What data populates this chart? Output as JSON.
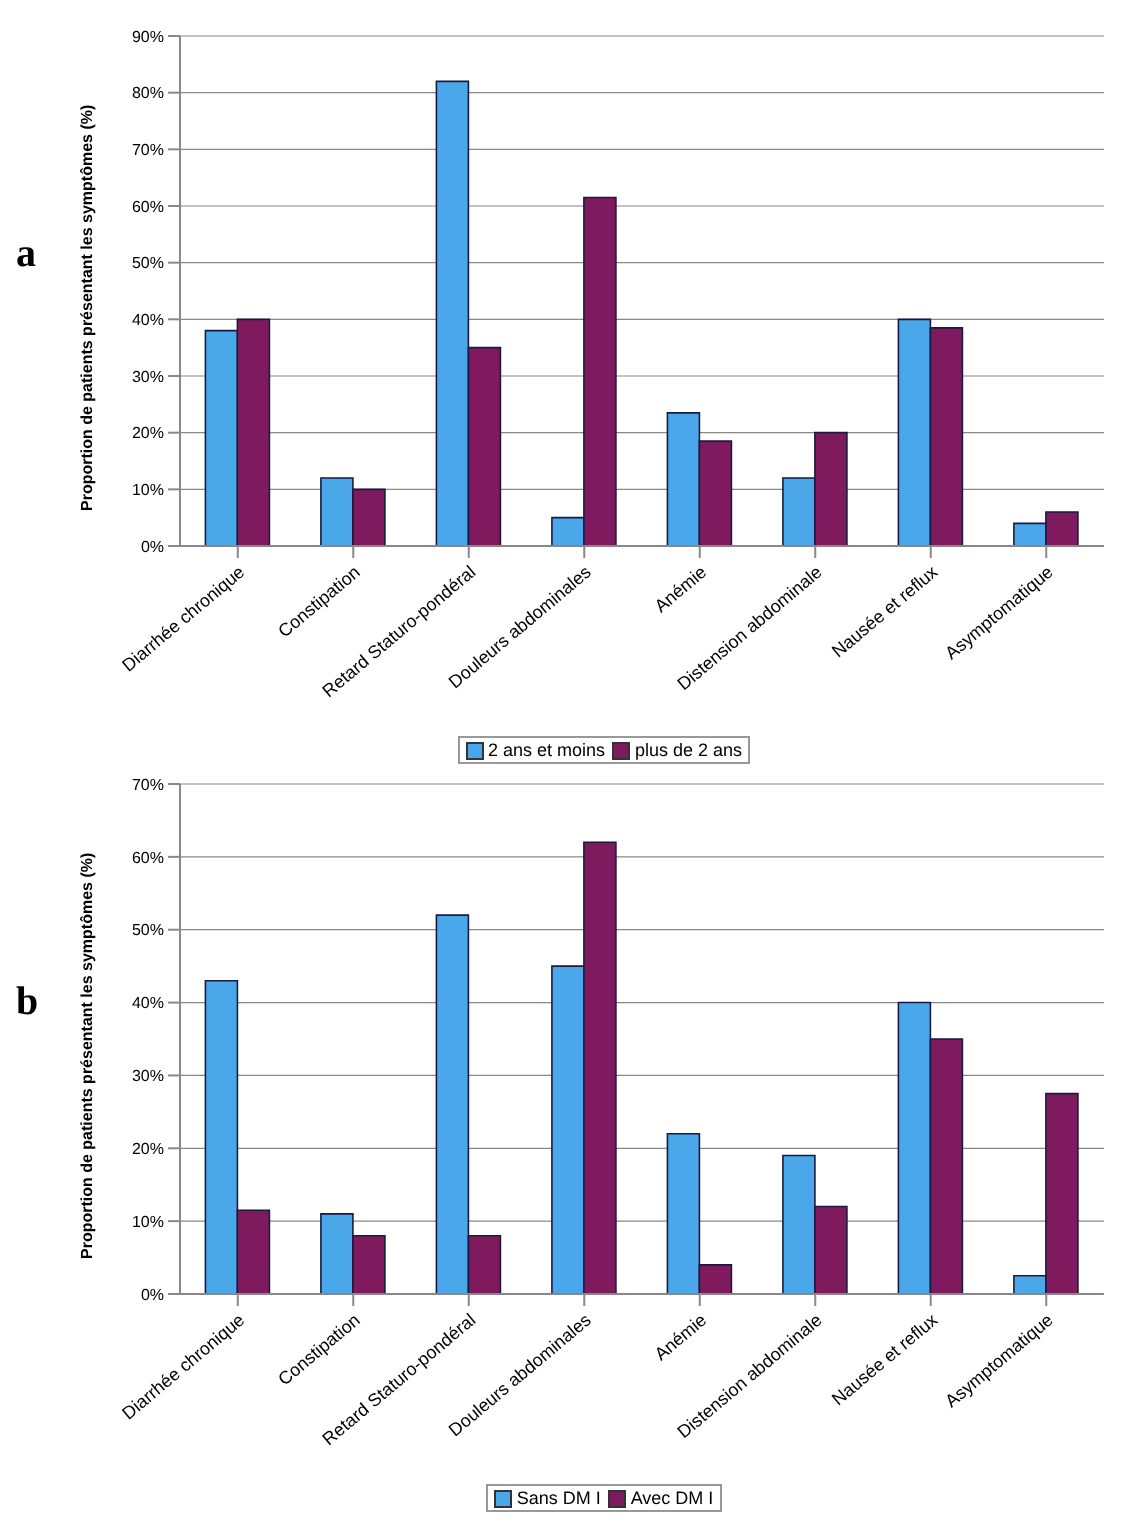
{
  "chart_data": [
    {
      "type": "bar",
      "title": "a",
      "ylabel": "Proportion de patients présentant les symptômes (%)",
      "categories": [
        "Diarrhée chronique",
        "Constipation",
        "Retard Staturo-pondéral",
        "Douleurs abdominales",
        "Anémie",
        "Distension abdominale",
        "Nausée et reflux",
        "Asymptomatique"
      ],
      "series": [
        {
          "name": "2 ans et moins",
          "color": "#4aa8ea",
          "values": [
            38,
            12,
            82,
            5,
            23.5,
            12,
            40,
            4
          ]
        },
        {
          "name": "plus de 2 ans",
          "color": "#7f1a5e",
          "values": [
            40,
            10,
            35,
            61.5,
            18.5,
            20,
            38.5,
            6
          ]
        }
      ],
      "ylim": [
        0,
        90
      ],
      "yticks": [
        {
          "value": 0,
          "label": "0%"
        },
        {
          "value": 10,
          "label": "10%"
        },
        {
          "value": 20,
          "label": "20%"
        },
        {
          "value": 30,
          "label": "30%"
        },
        {
          "value": 40,
          "label": "40%"
        },
        {
          "value": 50,
          "label": "50%"
        },
        {
          "value": 60,
          "label": "60%"
        },
        {
          "value": 70,
          "label": "70%"
        },
        {
          "value": 80,
          "label": "80%"
        },
        {
          "value": 90,
          "label": "90%"
        }
      ],
      "grid": "y",
      "legend": "bottom"
    },
    {
      "type": "bar",
      "title": "b",
      "ylabel": "Proportion de patients présentant les symptômes (%)",
      "categories": [
        "Diarrhée chronique",
        "Constipation",
        "Retard Staturo-pondéral",
        "Douleurs abdominales",
        "Anémie",
        "Distension abdominale",
        "Nausée et reflux",
        "Asymptomatique"
      ],
      "series": [
        {
          "name": "Sans DM I",
          "color": "#4aa8ea",
          "values": [
            43,
            11,
            52,
            45,
            22,
            19,
            40,
            2.5
          ]
        },
        {
          "name": "Avec DM I",
          "color": "#7f1a5e",
          "values": [
            11.5,
            8,
            8,
            62,
            4,
            12,
            35,
            27.5
          ]
        }
      ],
      "ylim": [
        0,
        70
      ],
      "yticks": [
        {
          "value": 0,
          "label": "0%"
        },
        {
          "value": 10,
          "label": "10%"
        },
        {
          "value": 20,
          "label": "20%"
        },
        {
          "value": 30,
          "label": "30%"
        },
        {
          "value": 40,
          "label": "40%"
        },
        {
          "value": 50,
          "label": "50%"
        },
        {
          "value": 60,
          "label": "60%"
        },
        {
          "value": 70,
          "label": "70%"
        }
      ],
      "grid": "y",
      "legend": "bottom"
    }
  ]
}
